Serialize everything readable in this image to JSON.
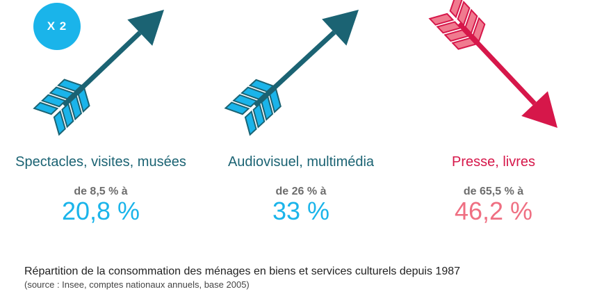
{
  "badge": "X 2",
  "colors": {
    "up": "#1b6373",
    "up_fletch": "#1ab4ea",
    "down": "#d6174a",
    "down_fletch": "#f07a8f",
    "accent": "#1ab4ea",
    "pink_value": "#ef6f82"
  },
  "chart_data": {
    "type": "table",
    "title": "Répartition de la consommation des ménages en biens et services culturels depuis 1987",
    "source": "(source : Insee, comptes nationaux annuels, base 2005)",
    "items": [
      {
        "category": "Spectacles, visites, musées",
        "from_label": "de 8,5 % à",
        "to_label": "20,8 %",
        "from": 8.5,
        "to": 20.8,
        "direction": "up"
      },
      {
        "category": "Audiovisuel, multimédia",
        "from_label": "de 26 % à",
        "to_label": "33 %",
        "from": 26,
        "to": 33,
        "direction": "up"
      },
      {
        "category": "Presse, livres",
        "from_label": "de 65,5 % à",
        "to_label": "46,2 %",
        "from": 65.5,
        "to": 46.2,
        "direction": "down"
      }
    ]
  }
}
